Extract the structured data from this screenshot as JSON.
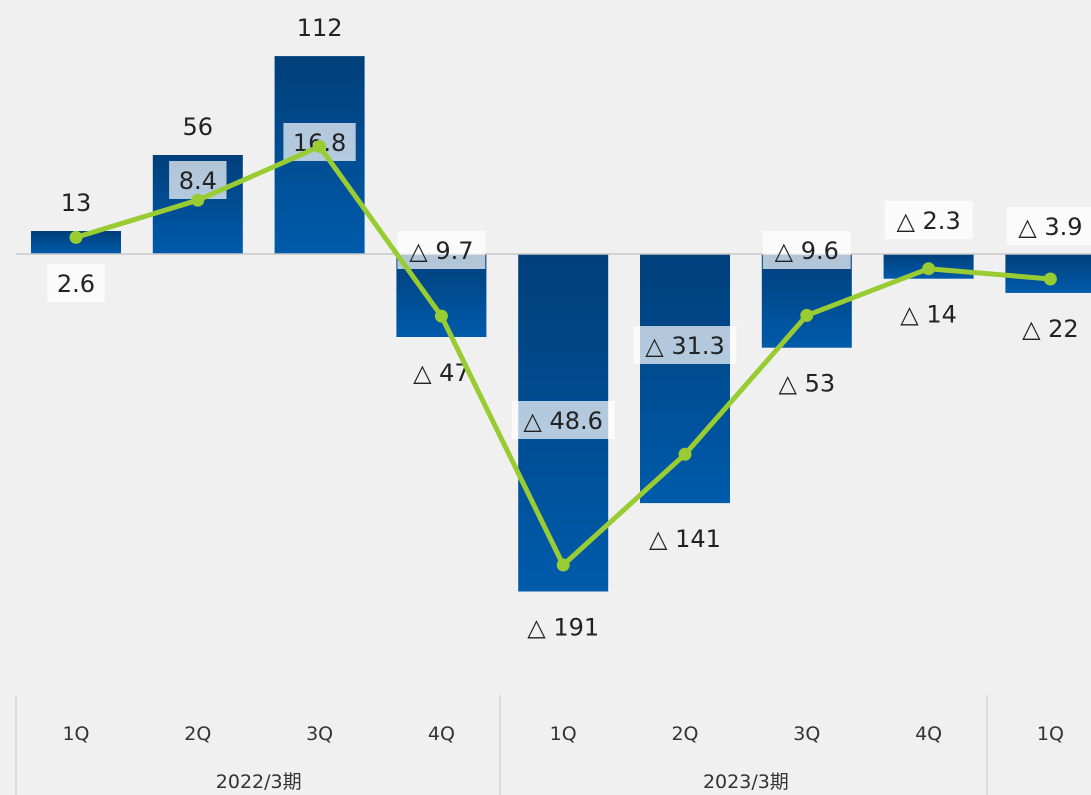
{
  "chart_data": {
    "type": "bar",
    "title": "",
    "xlabel": "",
    "ylabel": "",
    "groups": [
      {
        "label": "2022/3期",
        "categories": [
          "1Q",
          "2Q",
          "3Q",
          "4Q"
        ]
      },
      {
        "label": "2023/3期",
        "categories": [
          "1Q",
          "2Q",
          "3Q",
          "4Q"
        ]
      },
      {
        "label": "",
        "categories": [
          "1Q"
        ]
      }
    ],
    "categories": [
      "1Q",
      "2Q",
      "3Q",
      "4Q",
      "1Q",
      "2Q",
      "3Q",
      "4Q",
      "1Q"
    ],
    "series": [
      {
        "type": "bar",
        "values": [
          13,
          56,
          112,
          -47,
          -191,
          -141,
          -53,
          -14,
          -22
        ],
        "labels": [
          "13",
          "56",
          "112",
          "△ 47",
          "△ 191",
          "△ 141",
          "△ 53",
          "△ 14",
          "△ 22"
        ]
      },
      {
        "type": "line",
        "values": [
          2.6,
          8.4,
          16.8,
          -9.7,
          -48.6,
          -31.3,
          -9.6,
          -2.3,
          -3.9
        ],
        "labels": [
          "2.6",
          "8.4",
          "16.8",
          "△ 9.7",
          "△ 48.6",
          "△ 31.3",
          "△ 9.6",
          "△ 2.3",
          "△ 3.9"
        ]
      }
    ],
    "grid": false,
    "legend": "none",
    "colors": {
      "bar_top": "#003f7a",
      "bar_bottom": "#005bab",
      "line": "#99cc33",
      "zero_line": "#c8c8c8",
      "divider": "#cfcfcf",
      "label_box": "#ffffff"
    }
  }
}
